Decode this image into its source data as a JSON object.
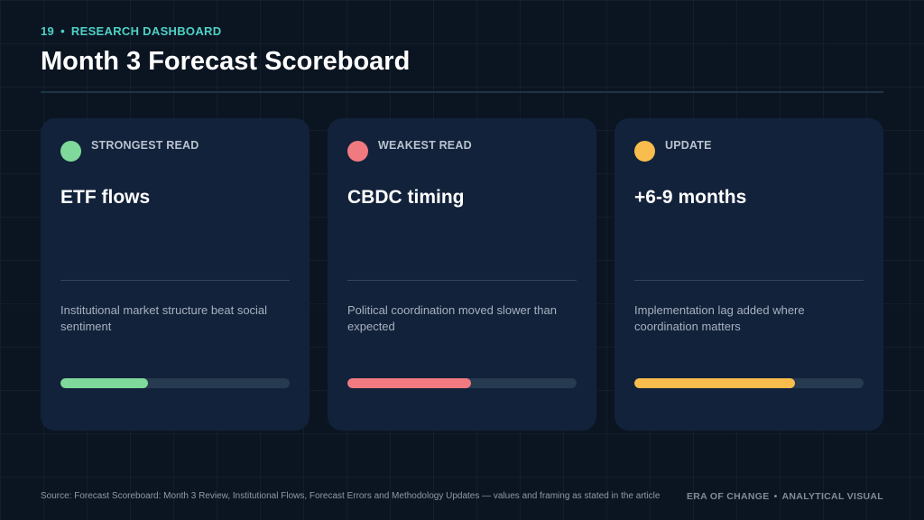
{
  "header": {
    "slide_number": "19",
    "separator": "•",
    "section": "RESEARCH DASHBOARD",
    "title": "Month 3 Forecast Scoreboard"
  },
  "colors": {
    "background": "#0b1522",
    "accent": "#4fd1c5",
    "card": "#12223a",
    "track": "#263a50"
  },
  "cards": [
    {
      "label": "STRONGEST READ",
      "value": "ETF flows",
      "description": "Institutional market structure beat social sentiment",
      "color": "#7fd99a",
      "progress": 0.38
    },
    {
      "label": "WEAKEST READ",
      "value": "CBDC timing",
      "description": "Political coordination moved slower than expected",
      "color": "#f07a80",
      "progress": 0.54
    },
    {
      "label": "UPDATE",
      "value": "+6-9 months",
      "description": "Implementation lag added where coordination matters",
      "color": "#f8bd4c",
      "progress": 0.7
    }
  ],
  "footer": {
    "source": "Source: Forecast Scoreboard: Month 3 Review, Institutional Flows, Forecast Errors and Methodology Updates — values and framing as stated in the article",
    "brand_left": "ERA OF CHANGE",
    "brand_separator": "•",
    "brand_right": "ANALYTICAL VISUAL"
  }
}
